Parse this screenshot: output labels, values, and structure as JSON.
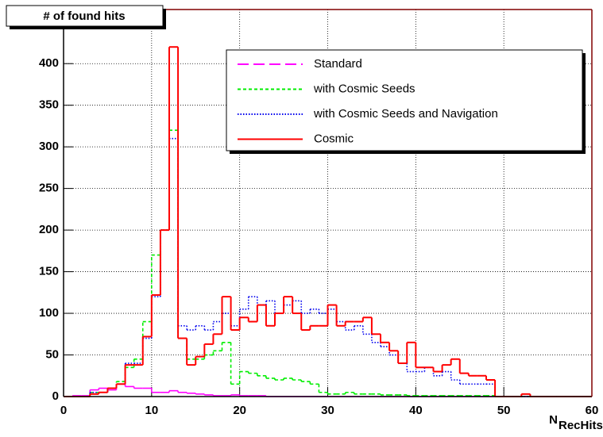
{
  "chart_data": {
    "type": "histogram",
    "title": "# of found hits",
    "x_label": "N",
    "x_label_sub": "RecHits",
    "bins": [
      0,
      1,
      2,
      3,
      4,
      5,
      6,
      7,
      8,
      9,
      10,
      11,
      12,
      13,
      14,
      15,
      16,
      17,
      18,
      19,
      20,
      21,
      22,
      23,
      24,
      25,
      26,
      27,
      28,
      29,
      30,
      31,
      32,
      33,
      34,
      35,
      36,
      37,
      38,
      39,
      40,
      41,
      42,
      43,
      44,
      45,
      46,
      47,
      48,
      49,
      50,
      51,
      52,
      53,
      54,
      55,
      56,
      57,
      58,
      59,
      60
    ],
    "series": [
      {
        "name": "Standard",
        "color": "#ff00ff",
        "line_style": "long-dash",
        "values": [
          0,
          1,
          1,
          8,
          10,
          8,
          15,
          12,
          10,
          10,
          5,
          5,
          7,
          5,
          4,
          3,
          2,
          1,
          1,
          2,
          1,
          1,
          1,
          0,
          0,
          0,
          0,
          0,
          0,
          0,
          0,
          0,
          0,
          0,
          0,
          0,
          0,
          0,
          0,
          0,
          0,
          0,
          0,
          0,
          0,
          0,
          0,
          0,
          0,
          0,
          0,
          0,
          0,
          0,
          0,
          0,
          0,
          0,
          0,
          0
        ]
      },
      {
        "name": "with Cosmic Seeds",
        "color": "#00ee00",
        "line_style": "dash",
        "values": [
          0,
          0,
          0,
          5,
          5,
          10,
          18,
          35,
          45,
          90,
          170,
          200,
          320,
          70,
          45,
          45,
          50,
          55,
          65,
          15,
          30,
          28,
          25,
          22,
          20,
          22,
          20,
          18,
          15,
          5,
          3,
          3,
          5,
          3,
          3,
          3,
          2,
          2,
          2,
          1,
          1,
          1,
          1,
          1,
          1,
          1,
          1,
          1,
          1,
          0,
          0,
          0,
          0,
          0,
          0,
          0,
          0,
          0,
          0,
          0
        ]
      },
      {
        "name": "with Cosmic Seeds and Navigation",
        "color": "#0000ee",
        "line_style": "dot",
        "values": [
          0,
          0,
          0,
          5,
          5,
          10,
          15,
          40,
          40,
          70,
          120,
          200,
          310,
          85,
          80,
          85,
          80,
          90,
          100,
          85,
          105,
          120,
          110,
          115,
          100,
          110,
          115,
          100,
          105,
          100,
          105,
          90,
          80,
          85,
          75,
          65,
          60,
          50,
          40,
          30,
          30,
          35,
          25,
          30,
          20,
          15,
          15,
          15,
          15,
          0,
          0,
          0,
          0,
          0,
          0,
          0,
          0,
          0,
          0,
          0
        ]
      },
      {
        "name": "Cosmic",
        "color": "#ff0000",
        "line_style": "solid",
        "values": [
          0,
          0,
          0,
          3,
          5,
          10,
          15,
          38,
          38,
          72,
          122,
          200,
          420,
          70,
          38,
          48,
          63,
          75,
          120,
          80,
          95,
          90,
          110,
          85,
          100,
          120,
          100,
          80,
          85,
          85,
          110,
          85,
          90,
          90,
          95,
          75,
          65,
          55,
          40,
          65,
          35,
          35,
          30,
          38,
          45,
          28,
          25,
          25,
          20,
          0,
          0,
          0,
          3,
          0,
          0,
          0,
          0,
          0,
          0,
          0
        ]
      }
    ],
    "xlim": [
      0,
      60
    ],
    "ylim": [
      0,
      465
    ],
    "xticks": [
      0,
      10,
      20,
      30,
      40,
      50,
      60
    ],
    "yticks": [
      0,
      50,
      100,
      150,
      200,
      250,
      300,
      350,
      400
    ],
    "grid": true,
    "legend": "top-right"
  }
}
